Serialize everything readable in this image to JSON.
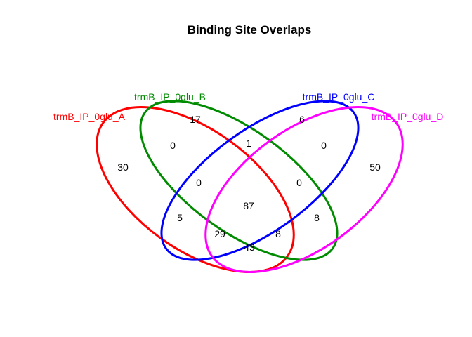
{
  "title": "Binding Site Overlaps",
  "sets": [
    {
      "name": "trmB_IP_0glu_A",
      "color": "#ff0000"
    },
    {
      "name": "trmB_IP_0glu_B",
      "color": "#008b00"
    },
    {
      "name": "trmB_IP_0glu_C",
      "color": "#0000ff"
    },
    {
      "name": "trmB_IP_0glu_D",
      "color": "#ff00ff"
    }
  ],
  "regions": [
    {
      "sets": "A",
      "count": "30"
    },
    {
      "sets": "B",
      "count": "17"
    },
    {
      "sets": "C",
      "count": "6"
    },
    {
      "sets": "D",
      "count": "50"
    },
    {
      "sets": "A,B",
      "count": "0"
    },
    {
      "sets": "B,C",
      "count": "1"
    },
    {
      "sets": "C,D",
      "count": "0"
    },
    {
      "sets": "A,B,C",
      "count": "0"
    },
    {
      "sets": "B,C,D",
      "count": "0"
    },
    {
      "sets": "A,B,C,D",
      "count": "87"
    },
    {
      "sets": "A,C",
      "count": "5"
    },
    {
      "sets": "B,D",
      "count": "8"
    },
    {
      "sets": "A,C,D",
      "count": "29"
    },
    {
      "sets": "A,B,D",
      "count": "8"
    },
    {
      "sets": "A,D",
      "count": "43"
    }
  ]
}
